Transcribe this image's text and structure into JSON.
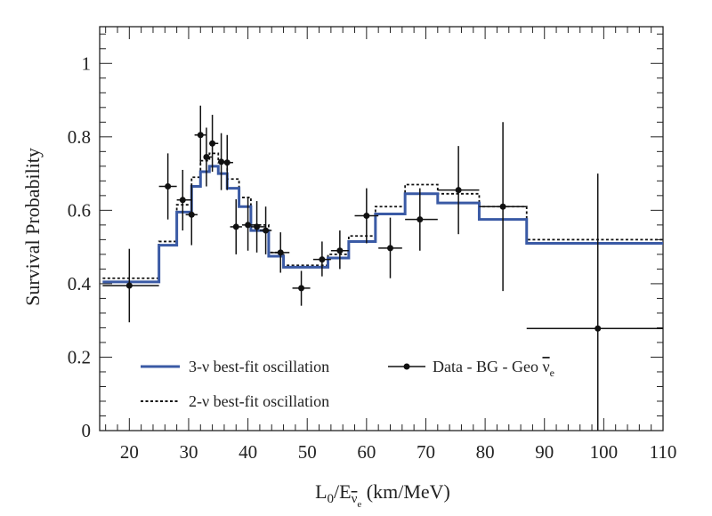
{
  "chart_data": {
    "type": "line",
    "xlabel": {
      "main": "L",
      "sub0": "0",
      "mid": "/E",
      "nubar": "ν",
      "sub_e": "e",
      "tail": " (km/MeV)"
    },
    "ylabel": "Survival Probability",
    "xlim": [
      15,
      110
    ],
    "ylim": [
      0,
      1.1
    ],
    "xticks": [
      20,
      30,
      40,
      50,
      60,
      70,
      80,
      90,
      100,
      110
    ],
    "yticks": [
      0,
      0.2,
      0.4,
      0.6,
      0.8,
      1
    ],
    "ytick_labels": [
      "0",
      "0.2",
      "0.4",
      "0.6",
      "0.8",
      "1"
    ],
    "grid": false,
    "legend": {
      "three_nu": "3-ν best-fit oscillation",
      "two_nu": "2-ν best-fit oscillation",
      "data_prefix": "Data - BG - Geo ",
      "data_nubar": "ν",
      "data_sub": "e"
    },
    "series": [
      {
        "name": "3-ν best-fit oscillation",
        "color": "#3a5aa5",
        "style": "solid-step",
        "steps": [
          {
            "x0": 15.5,
            "x1": 25,
            "y": 0.405
          },
          {
            "x0": 25,
            "x1": 28,
            "y": 0.505
          },
          {
            "x0": 28,
            "x1": 30.5,
            "y": 0.595
          },
          {
            "x0": 30.5,
            "x1": 32,
            "y": 0.665
          },
          {
            "x0": 32,
            "x1": 33.5,
            "y": 0.705
          },
          {
            "x0": 33.5,
            "x1": 35,
            "y": 0.72
          },
          {
            "x0": 35,
            "x1": 36.5,
            "y": 0.7
          },
          {
            "x0": 36.5,
            "x1": 38.5,
            "y": 0.66
          },
          {
            "x0": 38.5,
            "x1": 40.5,
            "y": 0.61
          },
          {
            "x0": 40.5,
            "x1": 43.5,
            "y": 0.545
          },
          {
            "x0": 43.5,
            "x1": 46,
            "y": 0.475
          },
          {
            "x0": 46,
            "x1": 53.5,
            "y": 0.445
          },
          {
            "x0": 53.5,
            "x1": 57,
            "y": 0.47
          },
          {
            "x0": 57,
            "x1": 61.5,
            "y": 0.515
          },
          {
            "x0": 61.5,
            "x1": 66.5,
            "y": 0.59
          },
          {
            "x0": 66.5,
            "x1": 72,
            "y": 0.645
          },
          {
            "x0": 72,
            "x1": 79,
            "y": 0.62
          },
          {
            "x0": 79,
            "x1": 87,
            "y": 0.575
          },
          {
            "x0": 87,
            "x1": 110,
            "y": 0.51
          }
        ]
      },
      {
        "name": "2-ν best-fit oscillation",
        "color": "#111111",
        "style": "dashed-step",
        "steps": [
          {
            "x0": 15.5,
            "x1": 25,
            "y": 0.415
          },
          {
            "x0": 25,
            "x1": 28,
            "y": 0.515
          },
          {
            "x0": 28,
            "x1": 30.5,
            "y": 0.615
          },
          {
            "x0": 30.5,
            "x1": 32,
            "y": 0.69
          },
          {
            "x0": 32,
            "x1": 33.5,
            "y": 0.735
          },
          {
            "x0": 33.5,
            "x1": 35,
            "y": 0.755
          },
          {
            "x0": 35,
            "x1": 36.5,
            "y": 0.73
          },
          {
            "x0": 36.5,
            "x1": 38.5,
            "y": 0.685
          },
          {
            "x0": 38.5,
            "x1": 40.5,
            "y": 0.635
          },
          {
            "x0": 40.5,
            "x1": 43.5,
            "y": 0.56
          },
          {
            "x0": 43.5,
            "x1": 46,
            "y": 0.485
          },
          {
            "x0": 46,
            "x1": 53.5,
            "y": 0.45
          },
          {
            "x0": 53.5,
            "x1": 57,
            "y": 0.48
          },
          {
            "x0": 57,
            "x1": 61.5,
            "y": 0.53
          },
          {
            "x0": 61.5,
            "x1": 66.5,
            "y": 0.61
          },
          {
            "x0": 66.5,
            "x1": 72,
            "y": 0.67
          },
          {
            "x0": 72,
            "x1": 79,
            "y": 0.645
          },
          {
            "x0": 79,
            "x1": 87,
            "y": 0.61
          },
          {
            "x0": 87,
            "x1": 110,
            "y": 0.52
          }
        ]
      },
      {
        "name": "Data - BG - Geo ν̄e",
        "color": "#111111",
        "style": "points-with-errors",
        "points": [
          {
            "x": 20,
            "y": 0.395,
            "xerr": [
              15.5,
              25
            ],
            "yerr": [
              0.295,
              0.495
            ]
          },
          {
            "x": 26.5,
            "y": 0.665,
            "xerr": [
              25,
              28
            ],
            "yerr": [
              0.575,
              0.755
            ]
          },
          {
            "x": 29,
            "y": 0.628,
            "xerr": [
              28,
              30.5
            ],
            "yerr": [
              0.545,
              0.71
            ]
          },
          {
            "x": 30.5,
            "y": 0.588,
            "xerr": [
              29.5,
              31.5
            ],
            "yerr": [
              0.505,
              0.67
            ]
          },
          {
            "x": 32,
            "y": 0.805,
            "xerr": [
              31,
              33
            ],
            "yerr": [
              0.725,
              0.885
            ]
          },
          {
            "x": 33,
            "y": 0.745,
            "xerr": [
              32.5,
              34
            ],
            "yerr": [
              0.665,
              0.825
            ]
          },
          {
            "x": 34,
            "y": 0.782,
            "xerr": [
              33.5,
              35
            ],
            "yerr": [
              0.705,
              0.86
            ]
          },
          {
            "x": 35.5,
            "y": 0.732,
            "xerr": [
              35,
              36.5
            ],
            "yerr": [
              0.655,
              0.81
            ]
          },
          {
            "x": 36.5,
            "y": 0.73,
            "xerr": [
              36,
              37.5
            ],
            "yerr": [
              0.655,
              0.805
            ]
          },
          {
            "x": 38,
            "y": 0.555,
            "xerr": [
              37,
              39
            ],
            "yerr": [
              0.48,
              0.63
            ]
          },
          {
            "x": 40,
            "y": 0.56,
            "xerr": [
              39,
              41
            ],
            "yerr": [
              0.49,
              0.635
            ]
          },
          {
            "x": 41.5,
            "y": 0.555,
            "xerr": [
              40.5,
              43
            ],
            "yerr": [
              0.485,
              0.625
            ]
          },
          {
            "x": 43,
            "y": 0.545,
            "xerr": [
              42,
              44
            ],
            "yerr": [
              0.48,
              0.61
            ]
          },
          {
            "x": 45.5,
            "y": 0.485,
            "xerr": [
              44,
              47
            ],
            "yerr": [
              0.43,
              0.54
            ]
          },
          {
            "x": 49,
            "y": 0.388,
            "xerr": [
              47.5,
              50.5
            ],
            "yerr": [
              0.34,
              0.435
            ]
          },
          {
            "x": 52.5,
            "y": 0.466,
            "xerr": [
              51,
              54
            ],
            "yerr": [
              0.42,
              0.515
            ]
          },
          {
            "x": 55.5,
            "y": 0.49,
            "xerr": [
              54,
              57
            ],
            "yerr": [
              0.44,
              0.545
            ]
          },
          {
            "x": 60,
            "y": 0.585,
            "xerr": [
              58,
              62
            ],
            "yerr": [
              0.51,
              0.66
            ]
          },
          {
            "x": 64,
            "y": 0.497,
            "xerr": [
              62,
              66
            ],
            "yerr": [
              0.415,
              0.58
            ]
          },
          {
            "x": 69,
            "y": 0.575,
            "xerr": [
              66.5,
              72
            ],
            "yerr": [
              0.49,
              0.66
            ]
          },
          {
            "x": 75.5,
            "y": 0.655,
            "xerr": [
              72,
              79
            ],
            "yerr": [
              0.535,
              0.775
            ]
          },
          {
            "x": 83,
            "y": 0.61,
            "xerr": [
              79,
              87
            ],
            "yerr": [
              0.38,
              0.84
            ]
          },
          {
            "x": 99,
            "y": 0.278,
            "xerr": [
              87,
              110
            ],
            "yerr": [
              0,
              0.7
            ]
          }
        ]
      }
    ]
  }
}
